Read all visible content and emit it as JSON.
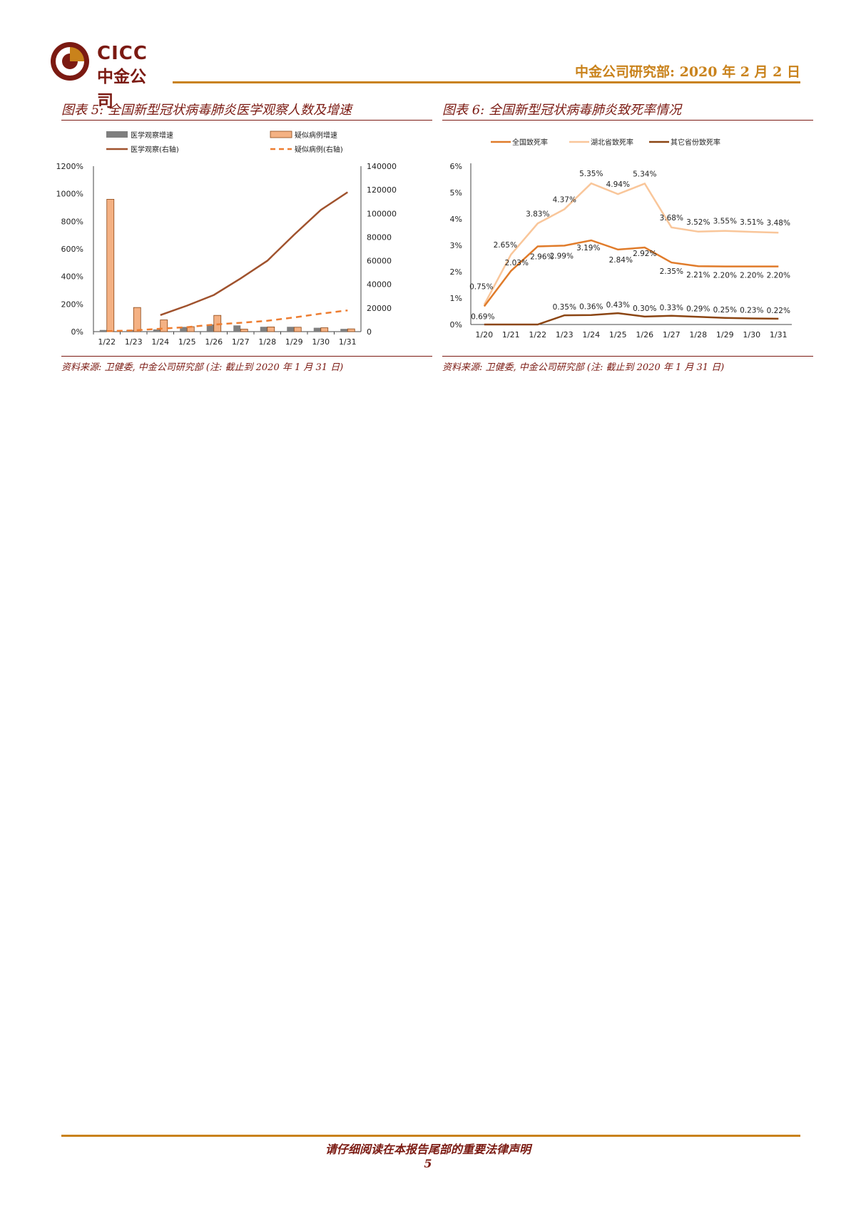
{
  "header": {
    "logo_en": "CICC",
    "logo_cn": "中金公司",
    "dept_date": "中金公司研究部: 2020 年 2 月 2 日"
  },
  "chart5": {
    "title": "图表 5: 全国新型冠状病毒肺炎医学观察人数及增速",
    "source": "资料来源: 卫健委, 中金公司研究部 (注: 截止到 2020 年 1 月 31 日)"
  },
  "chart6": {
    "title": "图表 6: 全国新型冠状病毒肺炎致死率情况",
    "source": "资料来源: 卫健委, 中金公司研究部 (注: 截止到 2020 年 1 月 31 日)"
  },
  "footer": {
    "note": "请仔细阅读在本报告尾部的重要法律声明",
    "page": "5"
  },
  "chart_data": [
    {
      "type": "bar",
      "categories": [
        "1/22",
        "1/23",
        "1/24",
        "1/25",
        "1/26",
        "1/27",
        "1/28",
        "1/29",
        "1/30",
        "1/31"
      ],
      "ylim": [
        0,
        12
      ],
      "y_ticks": [
        "0%",
        "200%",
        "400%",
        "600%",
        "800%",
        "1000%",
        "1200%"
      ],
      "y2lim": [
        0,
        140000
      ],
      "y2_ticks": [
        "0",
        "20000",
        "40000",
        "60000",
        "80000",
        "100000",
        "120000",
        "140000"
      ],
      "legend": [
        "医学观察增速",
        "疑似病例增速",
        "医学观察(右轴)",
        "疑似病例(右轴)"
      ],
      "series": [
        {
          "name": "医学观察增速",
          "type": "bar",
          "color": "#7f7f7f",
          "values": [
            0.12,
            0.12,
            0.16,
            0.34,
            0.52,
            0.45,
            0.35,
            0.35,
            0.28,
            0.2
          ]
        },
        {
          "name": "疑似病例增速",
          "type": "bar",
          "color": "#f4b183",
          "values": [
            9.6,
            1.75,
            0.85,
            0.36,
            1.18,
            0.18,
            0.34,
            0.32,
            0.28,
            0.2
          ]
        },
        {
          "name": "医学观察(右轴)",
          "type": "line",
          "axis": "right",
          "color": "#a0522d",
          "values": [
            null,
            null,
            14000,
            22000,
            31000,
            45000,
            60000,
            82000,
            103000,
            118000
          ]
        },
        {
          "name": "疑似病例(右轴)",
          "type": "line",
          "axis": "right",
          "dashed": true,
          "color": "#ed7d31",
          "values": [
            400,
            1000,
            2500,
            3800,
            6000,
            7500,
            9200,
            12000,
            15200,
            18000
          ]
        }
      ]
    },
    {
      "type": "line",
      "categories": [
        "1/20",
        "1/21",
        "1/22",
        "1/23",
        "1/24",
        "1/25",
        "1/26",
        "1/27",
        "1/28",
        "1/29",
        "1/30",
        "1/31"
      ],
      "ylim": [
        0,
        6
      ],
      "y_ticks": [
        "0%",
        "1%",
        "2%",
        "3%",
        "4%",
        "5%",
        "6%"
      ],
      "legend": [
        "全国致死率",
        "湖北省致死率",
        "其它省份致死率"
      ],
      "series": [
        {
          "name": "全国致死率",
          "color": "#e07b2a",
          "values": [
            0.69,
            2.03,
            2.96,
            2.99,
            3.19,
            2.84,
            2.92,
            2.35,
            2.21,
            2.2,
            2.2,
            2.2
          ],
          "labels": [
            "0.69%",
            "2.03%",
            "2.96%",
            "2.99%",
            "3.19%",
            "2.84%",
            "2.92%",
            "2.35%",
            "2.21%",
            "2.20%",
            "2.20%",
            "2.20%"
          ]
        },
        {
          "name": "湖北省致死率",
          "color": "#f9c69a",
          "values": [
            0.75,
            2.65,
            3.83,
            4.37,
            5.35,
            4.94,
            5.34,
            3.68,
            3.52,
            3.55,
            3.51,
            3.48
          ],
          "labels": [
            "0.75%",
            "2.65%",
            "3.83%",
            "4.37%",
            "5.35%",
            "4.94%",
            "5.34%",
            "3.68%",
            "3.52%",
            "3.55%",
            "3.51%",
            "3.48%"
          ]
        },
        {
          "name": "其它省份致死率",
          "color": "#8b4513",
          "values": [
            0,
            0,
            0,
            0.35,
            0.36,
            0.43,
            0.3,
            0.33,
            0.29,
            0.25,
            0.23,
            0.22
          ],
          "labels": [
            "",
            "",
            "",
            "0.35%",
            "0.36%",
            "0.43%",
            "0.30%",
            "0.33%",
            "0.29%",
            "0.25%",
            "0.23%",
            "0.22%"
          ]
        }
      ]
    }
  ]
}
